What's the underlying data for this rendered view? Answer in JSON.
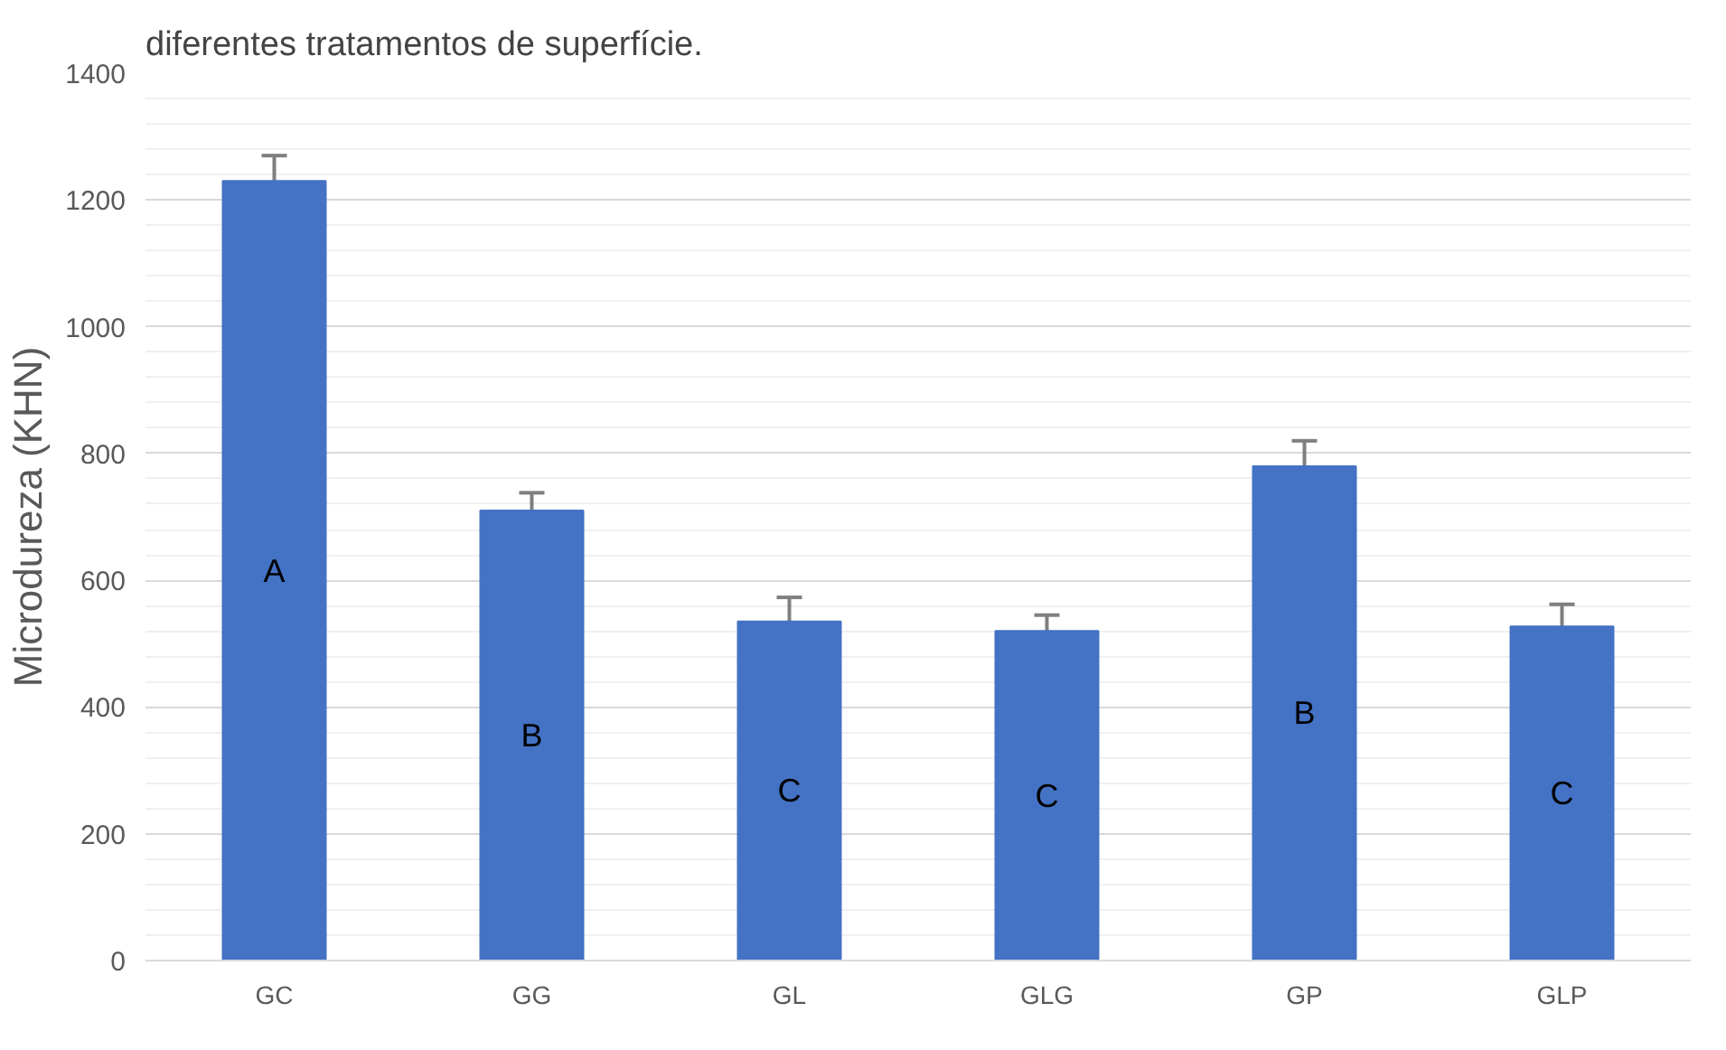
{
  "chart_data": {
    "type": "bar",
    "title": "diferentes tratamentos de superfície.",
    "ylabel": "Microdureza (KHN)",
    "categories": [
      "GC",
      "GG",
      "GL",
      "GLG",
      "GP",
      "GLP"
    ],
    "series": [
      {
        "color": "#4472c4",
        "values": [
          1230,
          710,
          535,
          520,
          780,
          527
        ],
        "errors": [
          40,
          28,
          38,
          25,
          40,
          35
        ],
        "value_labels": [
          "A",
          "B",
          "C",
          "C",
          "B",
          "C"
        ]
      }
    ],
    "ylim": [
      0,
      1400
    ],
    "yticks": [
      0,
      {
        "value": 40,
        "label": null
      },
      {
        "value": 80,
        "label": null
      },
      {
        "value": 120,
        "label": null
      },
      {
        "value": 160,
        "label": null
      },
      200,
      {
        "value": 240,
        "label": null
      },
      {
        "value": 280,
        "label": null
      },
      {
        "value": 320,
        "label": null
      },
      {
        "value": 360,
        "label": null
      },
      400,
      {
        "value": 440,
        "label": null
      },
      {
        "value": 480,
        "label": null
      },
      {
        "value": 520,
        "label": null
      },
      {
        "value": 560,
        "label": null
      },
      600,
      {
        "value": 640,
        "label": null
      },
      {
        "value": 680,
        "label": null
      },
      {
        "value": 720,
        "label": null
      },
      {
        "value": 760,
        "label": null
      },
      800,
      {
        "value": 840,
        "label": null
      },
      {
        "value": 880,
        "label": null
      },
      {
        "value": 920,
        "label": null
      },
      {
        "value": 960,
        "label": null
      },
      1000,
      {
        "value": 1040,
        "label": null
      },
      {
        "value": 1080,
        "label": null
      },
      {
        "value": 1120,
        "label": null
      },
      {
        "value": 1160,
        "label": null
      },
      1200,
      {
        "value": 1240,
        "label": null
      },
      {
        "value": 1280,
        "label": null
      },
      {
        "value": 1320,
        "label": null
      },
      {
        "value": 1360,
        "label": null
      },
      1400
    ],
    "grid": "y"
  }
}
